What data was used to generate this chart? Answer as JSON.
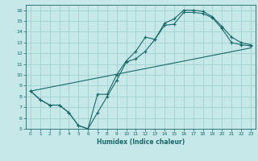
{
  "xlabel": "Humidex (Indice chaleur)",
  "background_color": "#c6e8e8",
  "grid_color": "#a8d4d4",
  "line_color": "#1a6868",
  "xlim": [
    -0.5,
    23.5
  ],
  "ylim": [
    5,
    16.5
  ],
  "xticks": [
    0,
    1,
    2,
    3,
    4,
    5,
    6,
    7,
    8,
    9,
    10,
    11,
    12,
    13,
    14,
    15,
    16,
    17,
    18,
    19,
    20,
    21,
    22,
    23
  ],
  "yticks": [
    5,
    6,
    7,
    8,
    9,
    10,
    11,
    12,
    13,
    14,
    15,
    16
  ],
  "line1_x": [
    0,
    1,
    2,
    3,
    4,
    5,
    6,
    7,
    8,
    9,
    10,
    11,
    12,
    13,
    14,
    15,
    16,
    17,
    18,
    19,
    20,
    21,
    22,
    23
  ],
  "line1_y": [
    8.5,
    7.7,
    7.2,
    7.2,
    6.5,
    5.3,
    5.0,
    8.2,
    8.2,
    10.0,
    11.3,
    12.2,
    13.5,
    13.3,
    14.6,
    14.7,
    15.8,
    15.8,
    15.7,
    15.3,
    14.3,
    13.0,
    12.8,
    12.7
  ],
  "line2_x": [
    0,
    1,
    2,
    3,
    4,
    5,
    6,
    7,
    8,
    9,
    10,
    11,
    12,
    13,
    14,
    15,
    16,
    17,
    18,
    19,
    20,
    21,
    22,
    23
  ],
  "line2_y": [
    8.5,
    7.7,
    7.2,
    7.2,
    6.5,
    5.3,
    5.0,
    6.5,
    8.0,
    9.5,
    11.2,
    11.5,
    12.2,
    13.3,
    14.8,
    15.2,
    16.0,
    16.0,
    15.9,
    15.4,
    14.5,
    13.5,
    13.0,
    12.8
  ],
  "line3_x": [
    0,
    23
  ],
  "line3_y": [
    8.5,
    12.5
  ]
}
